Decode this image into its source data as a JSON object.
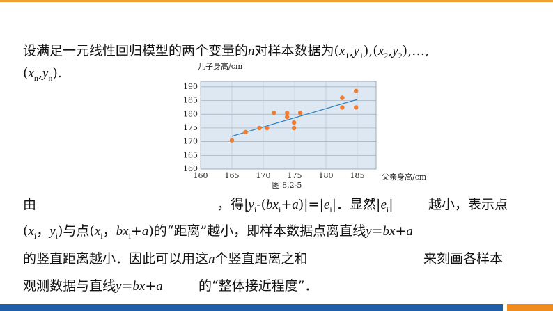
{
  "lines": [
    {
      "runs": [
        [
          "设满足一元线性回归模型的两个变量的",
          {
            "italic": "n"
          },
          "对样本数据为(",
          {
            "italic": "x"
          },
          {
            "sub": "1"
          },
          ",",
          {
            "italic": "y"
          },
          {
            "sub": "1"
          },
          "),(",
          {
            "italic": "x"
          },
          {
            "sub": "2"
          },
          ",",
          {
            "italic": "y"
          },
          {
            "sub": "2"
          },
          "),…,"
        ]
      ]
    },
    {
      "runs": [
        [
          "(",
          {
            "italic": "x"
          },
          {
            "sub": "n"
          },
          ",",
          {
            "italic": "y"
          },
          {
            "sub": "n"
          },
          ")."
        ]
      ]
    },
    {
      "runs": [
        [
          "由"
        ],
        [
          "，得|",
          {
            "italic": "y"
          },
          {
            "sub": "i"
          },
          "-(",
          {
            "italic": "bx"
          },
          {
            "sub": "i"
          },
          "+",
          {
            "italic": "a"
          },
          ")|=|",
          {
            "italic": "e"
          },
          {
            "sub": "i"
          },
          "|．显然|",
          {
            "italic": "e"
          },
          {
            "sub": "i"
          },
          "|"
        ],
        [
          "越小，表示点"
        ]
      ]
    },
    {
      "runs": [
        [
          "(",
          {
            "italic": "x"
          },
          {
            "sub": "i"
          },
          "，",
          {
            "italic": "y"
          },
          {
            "sub": "i"
          },
          ")与点(",
          {
            "italic": "x"
          },
          {
            "sub": "i"
          },
          "，",
          {
            "italic": "bx"
          },
          {
            "sub": "i"
          },
          "+",
          {
            "italic": "a"
          },
          ")的“距离”越小，即样本数据点离直线",
          {
            "italic": "y"
          },
          "=",
          {
            "italic": "bx"
          },
          "+",
          {
            "italic": "a"
          }
        ]
      ]
    },
    {
      "runs": [
        [
          "的竖直距离越小．因此可以用这",
          {
            "italic": "n"
          },
          "个竖直距离之和"
        ],
        [
          "来刻画各样本"
        ]
      ]
    },
    {
      "runs": [
        [
          "观测数据与直线",
          {
            "italic": "y"
          },
          "=",
          {
            "italic": "bx"
          },
          "+",
          {
            "italic": "a"
          }
        ],
        [
          "的“整体接近程度”．"
        ]
      ]
    }
  ],
  "chart_data": {
    "type": "scatter",
    "caption": "图 8.2-5",
    "x_label": "父亲身高/cm",
    "y_label": "儿子身高/cm",
    "xlim": [
      160,
      188
    ],
    "ylim": [
      160,
      192
    ],
    "xticks": [
      160,
      165,
      170,
      175,
      180,
      185
    ],
    "yticks": [
      160,
      165,
      170,
      175,
      180,
      185,
      190
    ],
    "grid": true,
    "color": "#f07d32",
    "x": [
      165,
      167.2,
      169.4,
      170.6,
      171.7,
      173.8,
      173.8,
      174.9,
      174.9,
      175.9,
      182.6,
      182.6,
      184.8,
      184.8
    ],
    "values": [
      170.5,
      173.5,
      175,
      175,
      180.5,
      180.5,
      179,
      177,
      175,
      180.5,
      186,
      182.5,
      188.5,
      182.5
    ],
    "fit_line": {
      "color": "#2a7fbf",
      "x": [
        165,
        185
      ],
      "values": [
        172,
        185.4
      ]
    }
  }
}
